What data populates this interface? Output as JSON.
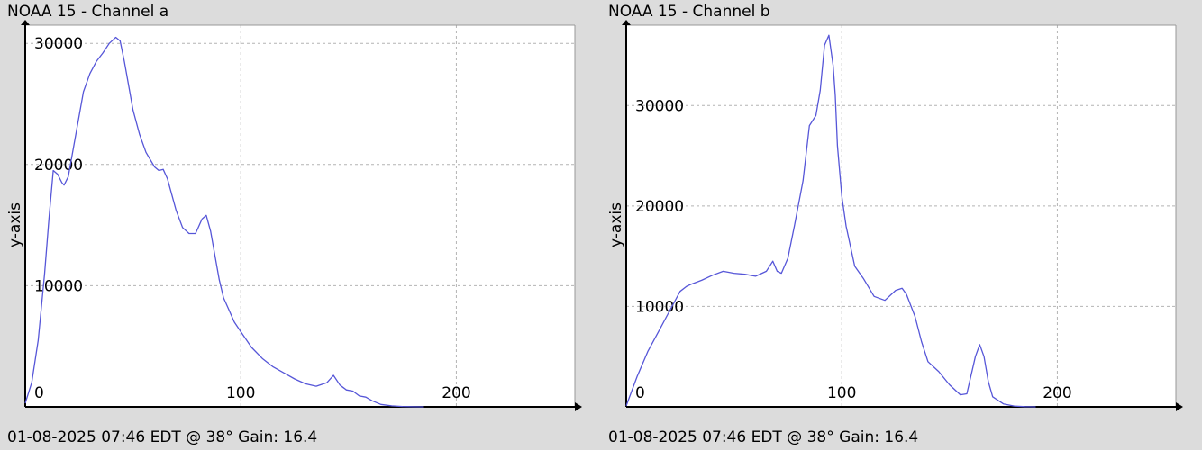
{
  "panels": [
    {
      "title": "NOAA 15 - Channel a",
      "footer": "01-08-2025 07:46 EDT @ 38° Gain: 16.4"
    },
    {
      "title": "NOAA 15 - Channel b",
      "footer": "01-08-2025 07:46 EDT @ 38° Gain: 16.4"
    }
  ],
  "colors": {
    "background": "#dcdcdc",
    "plot_bg": "#ffffff",
    "line": "#5656d8",
    "grid": "#b4b4b4"
  },
  "chart_data": [
    {
      "type": "line",
      "title": "NOAA 15 - Channel a",
      "xlabel": "",
      "ylabel": "y-axis",
      "xlim": [
        0,
        255
      ],
      "ylim": [
        0,
        31500
      ],
      "xticks": [
        0,
        100,
        200
      ],
      "yticks": [
        10000,
        20000,
        30000
      ],
      "grid": true,
      "series": [
        {
          "x": [
            0,
            3,
            6,
            9,
            11,
            13,
            15,
            17,
            18,
            20,
            22,
            24,
            27,
            30,
            33,
            36,
            39,
            42,
            44,
            46,
            48,
            50,
            53,
            56,
            60,
            62,
            64,
            66,
            68,
            70,
            73,
            76,
            79,
            82,
            84,
            86,
            88,
            90,
            92,
            94,
            97,
            100,
            105,
            110,
            115,
            120,
            125,
            130,
            135,
            140,
            143,
            146,
            149,
            152,
            155,
            158,
            161,
            165,
            170,
            175,
            180,
            185
          ],
          "y": [
            300,
            2000,
            5500,
            11000,
            15500,
            19500,
            19200,
            18500,
            18300,
            19000,
            21000,
            23000,
            26000,
            27500,
            28500,
            29200,
            30000,
            30500,
            30200,
            28500,
            26500,
            24500,
            22500,
            21000,
            19800,
            19500,
            19600,
            18800,
            17500,
            16200,
            14800,
            14300,
            14300,
            15500,
            15800,
            14500,
            12500,
            10500,
            9000,
            8200,
            7000,
            6200,
            4900,
            4000,
            3300,
            2800,
            2300,
            1900,
            1700,
            2000,
            2600,
            1800,
            1400,
            1300,
            900,
            800,
            500,
            200,
            80,
            30,
            10,
            0
          ]
        }
      ]
    },
    {
      "type": "line",
      "title": "NOAA 15 - Channel b",
      "xlabel": "",
      "ylabel": "y-axis",
      "xlim": [
        0,
        255
      ],
      "ylim": [
        0,
        38000
      ],
      "xticks": [
        0,
        100,
        200
      ],
      "yticks": [
        10000,
        20000,
        30000
      ],
      "grid": true,
      "series": [
        {
          "x": [
            0,
            5,
            10,
            15,
            20,
            25,
            28,
            30,
            35,
            40,
            45,
            50,
            55,
            60,
            65,
            68,
            70,
            72,
            75,
            78,
            82,
            85,
            88,
            90,
            92,
            94,
            96,
            97,
            98,
            100,
            102,
            104,
            106,
            110,
            115,
            120,
            125,
            128,
            130,
            134,
            137,
            140,
            145,
            150,
            155,
            158,
            162,
            164,
            166,
            168,
            170,
            175,
            180,
            185,
            190
          ],
          "y": [
            100,
            3000,
            5500,
            7500,
            9500,
            11500,
            12000,
            12200,
            12600,
            13100,
            13500,
            13300,
            13200,
            13000,
            13500,
            14500,
            13500,
            13300,
            14800,
            18000,
            22500,
            28000,
            29000,
            31500,
            36000,
            37000,
            34000,
            31000,
            26000,
            21000,
            18000,
            16000,
            14000,
            12800,
            11000,
            10600,
            11600,
            11800,
            11200,
            9000,
            6500,
            4500,
            3500,
            2200,
            1200,
            1300,
            5000,
            6200,
            5000,
            2500,
            1000,
            300,
            80,
            20,
            0
          ]
        }
      ]
    }
  ]
}
